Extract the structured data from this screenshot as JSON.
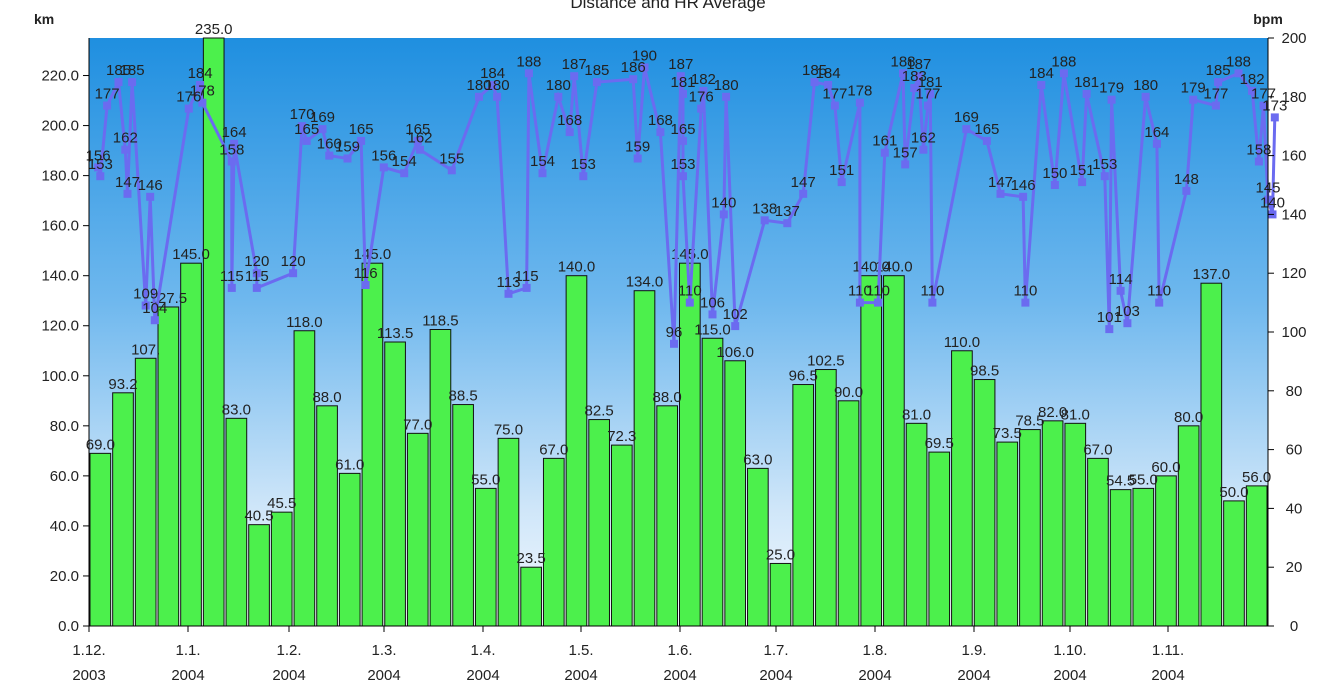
{
  "chart_data": {
    "type": "bar",
    "title": "Distance and HR Average",
    "y_left_label": "km",
    "y_right_label": "bpm",
    "ylim_left": [
      0,
      235
    ],
    "ylim_right": [
      0,
      200
    ],
    "y_left_ticks": [
      "0.0",
      "20.0",
      "40.0",
      "60.0",
      "80.0",
      "100.0",
      "120.0",
      "140.0",
      "160.0",
      "180.0",
      "200.0",
      "220.0"
    ],
    "y_right_ticks": [
      "0",
      "20",
      "40",
      "60",
      "80",
      "100",
      "120",
      "140",
      "160",
      "180",
      "200"
    ],
    "x_ticks": [
      {
        "day": "1.12.",
        "year": "2003"
      },
      {
        "day": "1.1.",
        "year": "2004"
      },
      {
        "day": "1.2.",
        "year": "2004"
      },
      {
        "day": "1.3.",
        "year": "2004"
      },
      {
        "day": "1.4.",
        "year": "2004"
      },
      {
        "day": "1.5.",
        "year": "2004"
      },
      {
        "day": "1.6.",
        "year": "2004"
      },
      {
        "day": "1.7.",
        "year": "2004"
      },
      {
        "day": "1.8.",
        "year": "2004"
      },
      {
        "day": "1.9.",
        "year": "2004"
      },
      {
        "day": "1.10.",
        "year": "2004"
      },
      {
        "day": "1.11.",
        "year": "2004"
      }
    ],
    "bars": [
      {
        "value": 69.0,
        "label": "69.0"
      },
      {
        "value": 93.2,
        "label": "93.2"
      },
      {
        "value": 107.0,
        "label": "107."
      },
      {
        "value": 127.5,
        "label": "127.5"
      },
      {
        "value": 145.0,
        "label": "145.0"
      },
      {
        "value": 235.0,
        "label": "235.0"
      },
      {
        "value": 83.0,
        "label": "83.0"
      },
      {
        "value": 40.5,
        "label": "40.5"
      },
      {
        "value": 45.5,
        "label": "45.5"
      },
      {
        "value": 118.0,
        "label": "118.0"
      },
      {
        "value": 88.0,
        "label": "88.0"
      },
      {
        "value": 61.0,
        "label": "61.0"
      },
      {
        "value": 145.0,
        "label": "145.0"
      },
      {
        "value": 113.5,
        "label": "113.5"
      },
      {
        "value": 77.0,
        "label": "77.0"
      },
      {
        "value": 118.5,
        "label": "118.5"
      },
      {
        "value": 88.5,
        "label": "88.5"
      },
      {
        "value": 55.0,
        "label": "55.0"
      },
      {
        "value": 75.0,
        "label": "75.0"
      },
      {
        "value": 23.5,
        "label": "23.5"
      },
      {
        "value": 67.0,
        "label": "67.0"
      },
      {
        "value": 140.0,
        "label": "140.0"
      },
      {
        "value": 82.5,
        "label": "82.5"
      },
      {
        "value": 72.3,
        "label": "72.3"
      },
      {
        "value": 134.0,
        "label": "134.0"
      },
      {
        "value": 88.0,
        "label": "88.0"
      },
      {
        "value": 145.0,
        "label": "145.0"
      },
      {
        "value": 115.0,
        "label": "115.0"
      },
      {
        "value": 106.0,
        "label": "106.0"
      },
      {
        "value": 63.0,
        "label": "63.0"
      },
      {
        "value": 25.0,
        "label": "25.0"
      },
      {
        "value": 96.5,
        "label": "96.5"
      },
      {
        "value": 102.5,
        "label": "102.5"
      },
      {
        "value": 90.0,
        "label": "90.0"
      },
      {
        "value": 140.0,
        "label": "140.0"
      },
      {
        "value": 140.0,
        "label": "140.0"
      },
      {
        "value": 81.0,
        "label": "81.0"
      },
      {
        "value": 69.5,
        "label": "69.5"
      },
      {
        "value": 110.0,
        "label": "110.0"
      },
      {
        "value": 98.5,
        "label": "98.5"
      },
      {
        "value": 73.5,
        "label": "73.5"
      },
      {
        "value": 78.5,
        "label": "78.5"
      },
      {
        "value": 82.0,
        "label": "82.0"
      },
      {
        "value": 81.0,
        "label": "81.0"
      },
      {
        "value": 67.0,
        "label": "67.0"
      },
      {
        "value": 54.5,
        "label": "54.5"
      },
      {
        "value": 55.0,
        "label": "55.0"
      },
      {
        "value": 60.0,
        "label": "60.0"
      },
      {
        "value": 80.0,
        "label": "80.0"
      },
      {
        "value": 137.0,
        "label": "137.0"
      },
      {
        "value": 50.0,
        "label": "50.0"
      },
      {
        "value": 56.0,
        "label": "56.0"
      }
    ],
    "hr_labels": [
      {
        "x": 0.4,
        "v": 156,
        "text": "156"
      },
      {
        "x": 0.5,
        "v": 153,
        "text": "153"
      },
      {
        "x": 1.3,
        "v": 185,
        "text": "185"
      },
      {
        "x": 1.9,
        "v": 185,
        "text": "185"
      },
      {
        "x": 0.8,
        "v": 177,
        "text": "177"
      },
      {
        "x": 1.6,
        "v": 162,
        "text": "162"
      },
      {
        "x": 1.7,
        "v": 147,
        "text": "147"
      },
      {
        "x": 2.7,
        "v": 146,
        "text": "146"
      },
      {
        "x": 4.4,
        "v": 176,
        "text": "176"
      },
      {
        "x": 4.9,
        "v": 184,
        "text": "184"
      },
      {
        "x": 5.0,
        "v": 178,
        "text": "178"
      },
      {
        "x": 6.4,
        "v": 164,
        "text": "164"
      },
      {
        "x": 6.3,
        "v": 158,
        "text": "158"
      },
      {
        "x": 9.4,
        "v": 170,
        "text": "170"
      },
      {
        "x": 10.3,
        "v": 169,
        "text": "169"
      },
      {
        "x": 9.6,
        "v": 165,
        "text": "165"
      },
      {
        "x": 10.6,
        "v": 160,
        "text": "160"
      },
      {
        "x": 11.4,
        "v": 159,
        "text": "159"
      },
      {
        "x": 12.0,
        "v": 165,
        "text": "165"
      },
      {
        "x": 13.0,
        "v": 156,
        "text": "156"
      },
      {
        "x": 13.9,
        "v": 154,
        "text": "154"
      },
      {
        "x": 14.5,
        "v": 165,
        "text": "165"
      },
      {
        "x": 14.6,
        "v": 162,
        "text": "162"
      },
      {
        "x": 16.0,
        "v": 155,
        "text": "155"
      },
      {
        "x": 17.2,
        "v": 180,
        "text": "180"
      },
      {
        "x": 17.8,
        "v": 184,
        "text": "184"
      },
      {
        "x": 18.0,
        "v": 180,
        "text": "180"
      },
      {
        "x": 19.4,
        "v": 188,
        "text": "188"
      },
      {
        "x": 21.4,
        "v": 187,
        "text": "187"
      },
      {
        "x": 20.7,
        "v": 180,
        "text": "180"
      },
      {
        "x": 22.4,
        "v": 185,
        "text": "185"
      },
      {
        "x": 21.2,
        "v": 168,
        "text": "168"
      },
      {
        "x": 21.8,
        "v": 153,
        "text": "153"
      },
      {
        "x": 20.0,
        "v": 154,
        "text": "154"
      },
      {
        "x": 24.5,
        "v": 190,
        "text": "190"
      },
      {
        "x": 24.0,
        "v": 186,
        "text": "186"
      },
      {
        "x": 26.1,
        "v": 187,
        "text": "187"
      },
      {
        "x": 26.2,
        "v": 181,
        "text": "181"
      },
      {
        "x": 27.1,
        "v": 182,
        "text": "182"
      },
      {
        "x": 28.1,
        "v": 180,
        "text": "180"
      },
      {
        "x": 27.0,
        "v": 176,
        "text": "176"
      },
      {
        "x": 24.2,
        "v": 159,
        "text": "159"
      },
      {
        "x": 25.2,
        "v": 168,
        "text": "168"
      },
      {
        "x": 26.2,
        "v": 165,
        "text": "165"
      },
      {
        "x": 26.2,
        "v": 153,
        "text": "153"
      },
      {
        "x": 28.0,
        "v": 140,
        "text": "140"
      },
      {
        "x": 29.8,
        "v": 138,
        "text": "138"
      },
      {
        "x": 32.0,
        "v": 185,
        "text": "185"
      },
      {
        "x": 32.6,
        "v": 184,
        "text": "184"
      },
      {
        "x": 32.9,
        "v": 177,
        "text": "177"
      },
      {
        "x": 34.0,
        "v": 178,
        "text": "178"
      },
      {
        "x": 35.9,
        "v": 188,
        "text": "188"
      },
      {
        "x": 36.6,
        "v": 187,
        "text": "187"
      },
      {
        "x": 36.4,
        "v": 183,
        "text": "183"
      },
      {
        "x": 37.1,
        "v": 181,
        "text": "181"
      },
      {
        "x": 37.0,
        "v": 177,
        "text": "177"
      },
      {
        "x": 38.7,
        "v": 169,
        "text": "169"
      },
      {
        "x": 39.6,
        "v": 165,
        "text": "165"
      },
      {
        "x": 35.1,
        "v": 161,
        "text": "161"
      },
      {
        "x": 36.8,
        "v": 162,
        "text": "162"
      },
      {
        "x": 36.0,
        "v": 157,
        "text": "157"
      },
      {
        "x": 40.2,
        "v": 147,
        "text": "147"
      },
      {
        "x": 41.2,
        "v": 146,
        "text": "146"
      },
      {
        "x": 42.6,
        "v": 150,
        "text": "150"
      },
      {
        "x": 43.8,
        "v": 151,
        "text": "151"
      },
      {
        "x": 44.8,
        "v": 153,
        "text": "153"
      },
      {
        "x": 42.0,
        "v": 184,
        "text": "184"
      },
      {
        "x": 43.0,
        "v": 188,
        "text": "188"
      },
      {
        "x": 44.0,
        "v": 181,
        "text": "181"
      },
      {
        "x": 45.1,
        "v": 179,
        "text": "179"
      },
      {
        "x": 46.6,
        "v": 180,
        "text": "180"
      },
      {
        "x": 47.1,
        "v": 164,
        "text": "164"
      },
      {
        "x": 48.7,
        "v": 179,
        "text": "179"
      },
      {
        "x": 49.7,
        "v": 177,
        "text": "177"
      },
      {
        "x": 49.8,
        "v": 185,
        "text": "185"
      },
      {
        "x": 50.7,
        "v": 188,
        "text": "188"
      },
      {
        "x": 51.3,
        "v": 182,
        "text": "182"
      },
      {
        "x": 51.8,
        "v": 177,
        "text": "177"
      },
      {
        "x": 52.3,
        "v": 173,
        "text": "173"
      },
      {
        "x": 51.6,
        "v": 158,
        "text": "158"
      },
      {
        "x": 52.0,
        "v": 145,
        "text": "145"
      },
      {
        "x": 52.2,
        "v": 140,
        "text": "140"
      },
      {
        "x": 48.4,
        "v": 148,
        "text": "148"
      },
      {
        "x": 47.2,
        "v": 110,
        "text": "110"
      },
      {
        "x": 45.5,
        "v": 114,
        "text": "114"
      },
      {
        "x": 45.8,
        "v": 103,
        "text": "103"
      },
      {
        "x": 45.0,
        "v": 101,
        "text": "101"
      },
      {
        "x": 41.3,
        "v": 110,
        "text": "110"
      },
      {
        "x": 37.2,
        "v": 110,
        "text": "110"
      },
      {
        "x": 34.0,
        "v": 110,
        "text": "110"
      },
      {
        "x": 28.5,
        "v": 102,
        "text": "102"
      },
      {
        "x": 27.5,
        "v": 106,
        "text": "106"
      },
      {
        "x": 26.5,
        "v": 110,
        "text": "110"
      },
      {
        "x": 25.8,
        "v": 96,
        "text": "96"
      },
      {
        "x": 18.5,
        "v": 113,
        "text": "113"
      },
      {
        "x": 19.3,
        "v": 115,
        "text": "115"
      },
      {
        "x": 9.0,
        "v": 120,
        "text": "120"
      },
      {
        "x": 7.4,
        "v": 120,
        "text": "120"
      },
      {
        "x": 7.4,
        "v": 115,
        "text": "115"
      },
      {
        "x": 6.3,
        "v": 115,
        "text": "115"
      },
      {
        "x": 2.5,
        "v": 109,
        "text": "109"
      },
      {
        "x": 2.9,
        "v": 104,
        "text": "104"
      },
      {
        "x": 12.2,
        "v": 116,
        "text": "116"
      },
      {
        "x": 34.8,
        "v": 110,
        "text": "110"
      },
      {
        "x": 31.5,
        "v": 147,
        "text": "147"
      },
      {
        "x": 33.2,
        "v": 151,
        "text": "151"
      },
      {
        "x": 30.8,
        "v": 137,
        "text": "137"
      }
    ]
  }
}
